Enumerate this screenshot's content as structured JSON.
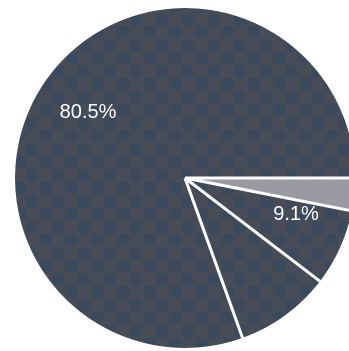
{
  "chart_data": {
    "type": "pie",
    "slices": [
      {
        "label": "80.5%",
        "value": 80.5,
        "color": "#3f4c5f"
      },
      {
        "label": "9.1%",
        "value": 9.1,
        "color": "#3f4c5f"
      },
      {
        "label": "",
        "value": 7.3,
        "color": "#3f4c5f"
      },
      {
        "label": "",
        "value": 3.1,
        "color": "#9a9aa3"
      }
    ],
    "edge_color": "#ffffff"
  }
}
